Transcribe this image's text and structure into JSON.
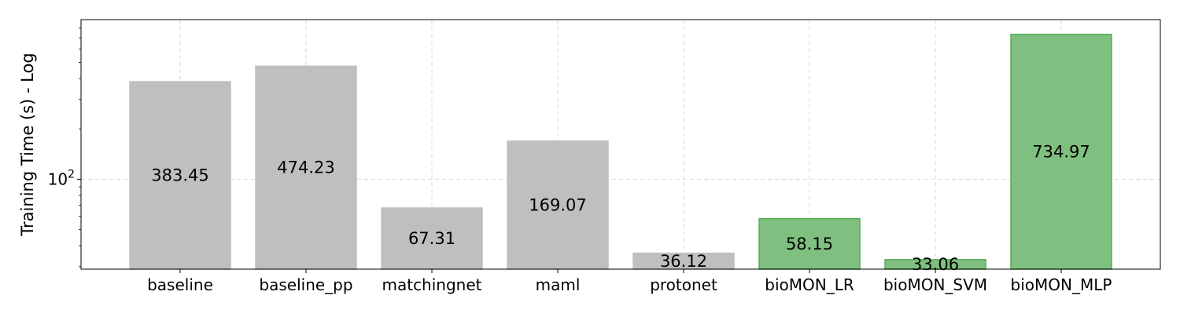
{
  "chart_data": {
    "type": "bar",
    "ylabel": "Training Time (s) - Log",
    "xlabel": "",
    "y_scale": "log",
    "ylim": [
      29,
      900
    ],
    "y_ticks": [
      {
        "value": 100,
        "base": "10",
        "exponent": "2"
      }
    ],
    "grid": true,
    "categories": [
      "baseline",
      "baseline_pp",
      "matchingnet",
      "maml",
      "protonet",
      "bioMON_LR",
      "bioMON_SVM",
      "bioMON_MLP"
    ],
    "values": [
      383.45,
      474.23,
      67.31,
      169.07,
      36.12,
      58.15,
      33.06,
      734.97
    ],
    "value_labels": [
      "383.45",
      "474.23",
      "67.31",
      "169.07",
      "36.12",
      "58.15",
      "33.06",
      "734.97"
    ],
    "groups": [
      "baseline",
      "baseline",
      "baseline",
      "baseline",
      "baseline",
      "bioMON",
      "bioMON",
      "bioMON"
    ],
    "colors": {
      "baseline": {
        "fill": "#bfbfbf",
        "stroke": "#bfbfbf"
      },
      "bioMON": {
        "fill": "#7fbf7f",
        "stroke": "#5aaa5a"
      },
      "grid": "#d9d9d9",
      "axis": "#000000"
    }
  }
}
